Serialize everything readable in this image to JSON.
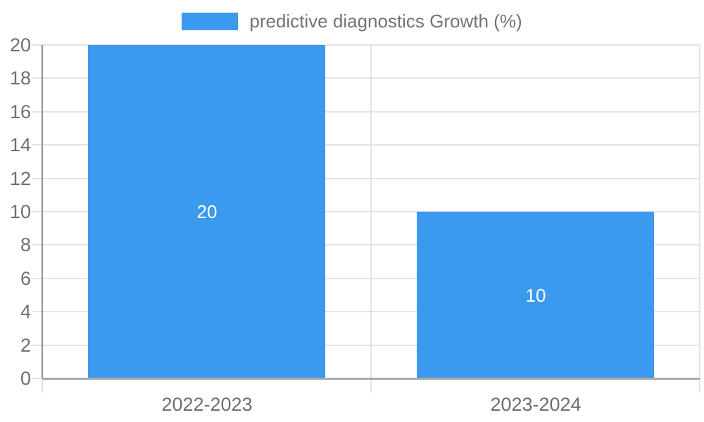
{
  "chart_data": {
    "type": "bar",
    "title": "",
    "legend": {
      "label": "predictive diagnostics Growth (%)",
      "position": "top"
    },
    "categories": [
      "2022-2023",
      "2023-2024"
    ],
    "series": [
      {
        "name": "predictive diagnostics Growth (%)",
        "values": [
          20,
          10
        ]
      }
    ],
    "bar_value_labels": [
      "20",
      "10"
    ],
    "xlabel": "",
    "ylabel": "",
    "ylim": [
      0,
      20
    ],
    "y_ticks": [
      0,
      2,
      4,
      6,
      8,
      10,
      12,
      14,
      16,
      18,
      20
    ],
    "grid": true,
    "colors": {
      "bar": "#3b99ee",
      "bar_label_text": "#ffffff",
      "grid": "#e3e3e3",
      "axis_x": "#ababab",
      "axis_y": "#8f8f8f",
      "tick_text": "#6f6f6f",
      "legend_text": "#737373",
      "background": "#ffffff"
    }
  }
}
